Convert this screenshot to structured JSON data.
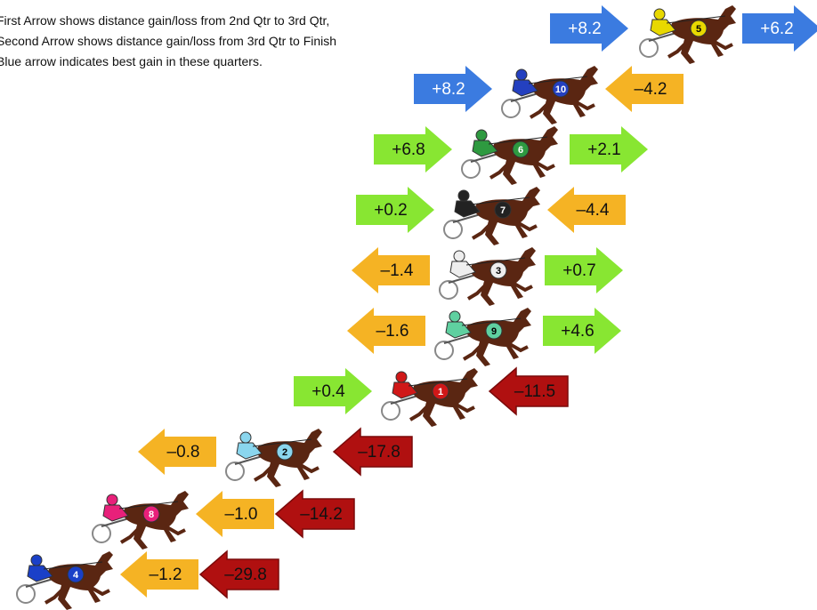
{
  "notes": [
    "First Arrow shows distance gain/loss from 2nd Qtr to 3rd Qtr,",
    "Second Arrow shows distance gain/loss from 3rd Qtr to Finish",
    "Blue arrow indicates best gain in these quarters."
  ],
  "rows": [
    {
      "horse": "5",
      "silk": "#e8d800",
      "arrows": [
        {
          "label": "+8.2",
          "direction": "right",
          "color": "#3b7be0"
        },
        {
          "label": "+6.2",
          "direction": "right",
          "color": "#3b7be0"
        }
      ]
    },
    {
      "horse": "10",
      "silk": "#2440c0",
      "arrows": [
        {
          "label": "+8.2",
          "direction": "right",
          "color": "#3b7be0"
        },
        {
          "label": "–4.2",
          "direction": "left",
          "color": "#f5b324"
        }
      ]
    },
    {
      "horse": "6",
      "silk": "#2e9a40",
      "arrows": [
        {
          "label": "+6.8",
          "direction": "right",
          "color": "#88e632"
        },
        {
          "label": "+2.1",
          "direction": "right",
          "color": "#88e632"
        }
      ]
    },
    {
      "horse": "7",
      "silk": "#222222",
      "arrows": [
        {
          "label": "+0.2",
          "direction": "right",
          "color": "#88e632"
        },
        {
          "label": "–4.4",
          "direction": "left",
          "color": "#f5b324"
        }
      ]
    },
    {
      "horse": "3",
      "silk": "#eeeeee",
      "arrows": [
        {
          "label": "–1.4",
          "direction": "left",
          "color": "#f5b324"
        },
        {
          "label": "+0.7",
          "direction": "right",
          "color": "#88e632"
        }
      ]
    },
    {
      "horse": "9",
      "silk": "#5fd0a0",
      "arrows": [
        {
          "label": "–1.6",
          "direction": "left",
          "color": "#f5b324"
        },
        {
          "label": "+4.6",
          "direction": "right",
          "color": "#88e632"
        }
      ]
    },
    {
      "horse": "1",
      "silk": "#d01818",
      "arrows": [
        {
          "label": "+0.4",
          "direction": "right",
          "color": "#88e632"
        },
        {
          "label": "–11.5",
          "direction": "left",
          "color": "#b01010"
        }
      ]
    },
    {
      "horse": "2",
      "silk": "#8ad6ee",
      "arrows": [
        {
          "label": "–0.8",
          "direction": "left",
          "color": "#f5b324"
        },
        {
          "label": "–17.8",
          "direction": "left",
          "color": "#b01010"
        }
      ]
    },
    {
      "horse": "8",
      "silk": "#e8207a",
      "arrows": [
        {
          "label": "–1.0",
          "direction": "left",
          "color": "#f5b324"
        },
        {
          "label": "–14.2",
          "direction": "left",
          "color": "#b01010"
        }
      ]
    },
    {
      "horse": "4",
      "silk": "#1a40c8",
      "arrows": [
        {
          "label": "–1.2",
          "direction": "left",
          "color": "#f5b324"
        },
        {
          "label": "–29.8",
          "direction": "left",
          "color": "#b01010"
        }
      ]
    }
  ]
}
